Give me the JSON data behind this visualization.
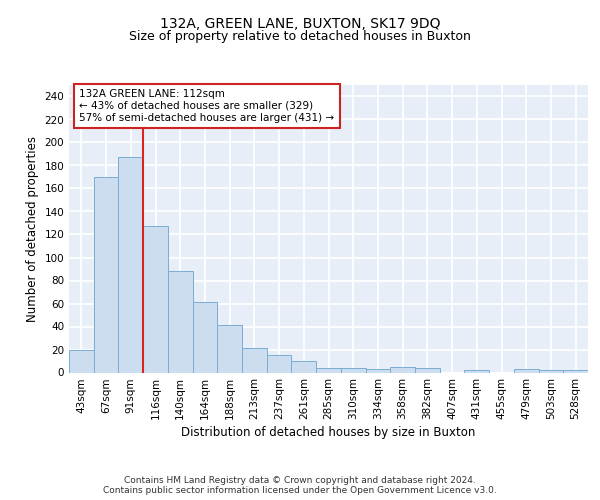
{
  "title": "132A, GREEN LANE, BUXTON, SK17 9DQ",
  "subtitle": "Size of property relative to detached houses in Buxton",
  "xlabel": "Distribution of detached houses by size in Buxton",
  "ylabel": "Number of detached properties",
  "categories": [
    "43sqm",
    "67sqm",
    "91sqm",
    "116sqm",
    "140sqm",
    "164sqm",
    "188sqm",
    "213sqm",
    "237sqm",
    "261sqm",
    "285sqm",
    "310sqm",
    "334sqm",
    "358sqm",
    "382sqm",
    "407sqm",
    "431sqm",
    "455sqm",
    "479sqm",
    "503sqm",
    "528sqm"
  ],
  "values": [
    20,
    170,
    187,
    127,
    88,
    61,
    41,
    21,
    15,
    10,
    4,
    4,
    3,
    5,
    4,
    0,
    2,
    0,
    3,
    2,
    2
  ],
  "bar_color": "#ccddf0",
  "bar_edge_color": "#7aadd4",
  "vline_color": "#dd2222",
  "annotation_text": "132A GREEN LANE: 112sqm\n← 43% of detached houses are smaller (329)\n57% of semi-detached houses are larger (431) →",
  "annotation_box_color": "white",
  "annotation_box_edge": "#cc2222",
  "ylim": [
    0,
    250
  ],
  "yticks": [
    0,
    20,
    40,
    60,
    80,
    100,
    120,
    140,
    160,
    180,
    200,
    220,
    240
  ],
  "background_color": "#e8eef8",
  "grid_color": "white",
  "footer_text": "Contains HM Land Registry data © Crown copyright and database right 2024.\nContains public sector information licensed under the Open Government Licence v3.0.",
  "title_fontsize": 10,
  "subtitle_fontsize": 9,
  "xlabel_fontsize": 8.5,
  "ylabel_fontsize": 8.5,
  "tick_fontsize": 7.5,
  "annotation_fontsize": 7.5,
  "footer_fontsize": 6.5
}
